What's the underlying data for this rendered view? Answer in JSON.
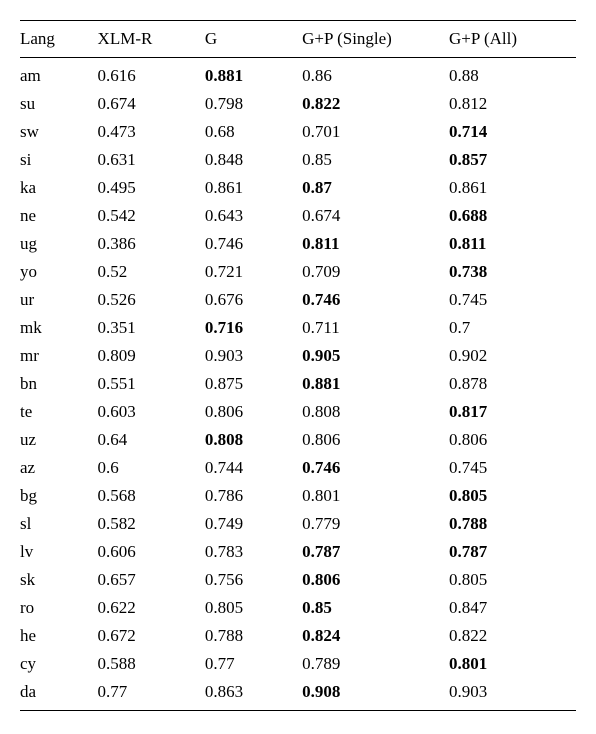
{
  "columns": [
    "Lang",
    "XLM-R",
    "G",
    "G+P (Single)",
    "G+P (All)"
  ],
  "rows": [
    {
      "lang": "am",
      "xlmr": "0.616",
      "g": "0.881",
      "gps": "0.86",
      "gpa": "0.88",
      "bold": "g"
    },
    {
      "lang": "su",
      "xlmr": "0.674",
      "g": "0.798",
      "gps": "0.822",
      "gpa": "0.812",
      "bold": "gps"
    },
    {
      "lang": "sw",
      "xlmr": "0.473",
      "g": "0.68",
      "gps": "0.701",
      "gpa": "0.714",
      "bold": "gpa"
    },
    {
      "lang": "si",
      "xlmr": "0.631",
      "g": "0.848",
      "gps": "0.85",
      "gpa": "0.857",
      "bold": "gpa"
    },
    {
      "lang": "ka",
      "xlmr": "0.495",
      "g": "0.861",
      "gps": "0.87",
      "gpa": "0.861",
      "bold": "gps"
    },
    {
      "lang": "ne",
      "xlmr": "0.542",
      "g": "0.643",
      "gps": "0.674",
      "gpa": "0.688",
      "bold": "gpa"
    },
    {
      "lang": "ug",
      "xlmr": "0.386",
      "g": "0.746",
      "gps": "0.811",
      "gpa": "0.811",
      "bold": "both"
    },
    {
      "lang": "yo",
      "xlmr": "0.52",
      "g": "0.721",
      "gps": "0.709",
      "gpa": "0.738",
      "bold": "gpa"
    },
    {
      "lang": "ur",
      "xlmr": "0.526",
      "g": "0.676",
      "gps": "0.746",
      "gpa": "0.745",
      "bold": "gps"
    },
    {
      "lang": "mk",
      "xlmr": "0.351",
      "g": "0.716",
      "gps": "0.711",
      "gpa": "0.7",
      "bold": "g"
    },
    {
      "lang": "mr",
      "xlmr": "0.809",
      "g": "0.903",
      "gps": "0.905",
      "gpa": "0.902",
      "bold": "gps"
    },
    {
      "lang": "bn",
      "xlmr": "0.551",
      "g": "0.875",
      "gps": "0.881",
      "gpa": "0.878",
      "bold": "gps"
    },
    {
      "lang": "te",
      "xlmr": "0.603",
      "g": "0.806",
      "gps": "0.808",
      "gpa": "0.817",
      "bold": "gpa"
    },
    {
      "lang": "uz",
      "xlmr": "0.64",
      "g": "0.808",
      "gps": "0.806",
      "gpa": "0.806",
      "bold": "g"
    },
    {
      "lang": "az",
      "xlmr": "0.6",
      "g": "0.744",
      "gps": "0.746",
      "gpa": "0.745",
      "bold": "gps"
    },
    {
      "lang": "bg",
      "xlmr": "0.568",
      "g": "0.786",
      "gps": "0.801",
      "gpa": "0.805",
      "bold": "gpa"
    },
    {
      "lang": "sl",
      "xlmr": "0.582",
      "g": "0.749",
      "gps": "0.779",
      "gpa": "0.788",
      "bold": "gpa"
    },
    {
      "lang": "lv",
      "xlmr": "0.606",
      "g": "0.783",
      "gps": "0.787",
      "gpa": "0.787",
      "bold": "both"
    },
    {
      "lang": "sk",
      "xlmr": "0.657",
      "g": "0.756",
      "gps": "0.806",
      "gpa": "0.805",
      "bold": "gps"
    },
    {
      "lang": "ro",
      "xlmr": "0.622",
      "g": "0.805",
      "gps": "0.85",
      "gpa": "0.847",
      "bold": "gps"
    },
    {
      "lang": "he",
      "xlmr": "0.672",
      "g": "0.788",
      "gps": "0.824",
      "gpa": "0.822",
      "bold": "gps"
    },
    {
      "lang": "cy",
      "xlmr": "0.588",
      "g": "0.77",
      "gps": "0.789",
      "gpa": "0.801",
      "bold": "gpa"
    },
    {
      "lang": "da",
      "xlmr": "0.77",
      "g": "0.863",
      "gps": "0.908",
      "gpa": "0.903",
      "bold": "gps"
    }
  ]
}
